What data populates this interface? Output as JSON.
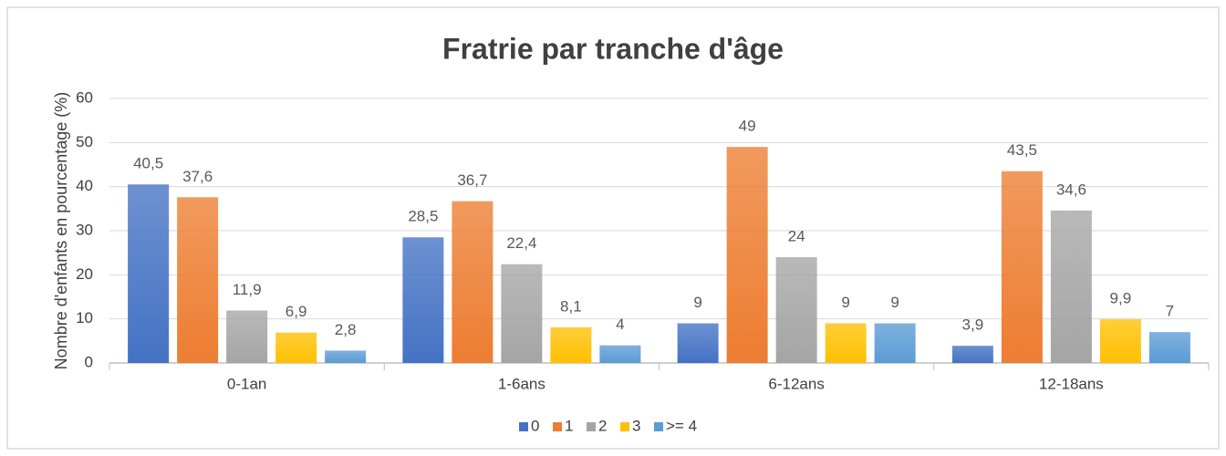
{
  "chart_data": {
    "type": "bar",
    "title": "Fratrie par tranche d'âge",
    "y_label": "Nombre d'enfants en pourcentage (%)",
    "categories": [
      "0-1an",
      "1-6ans",
      "6-12ans",
      "12-18ans"
    ],
    "series": [
      {
        "name": "0",
        "color": "#4472c4",
        "values": [
          40.5,
          28.5,
          9,
          3.9
        ],
        "value_labels": [
          "40,5",
          "28,5",
          "9",
          "3,9"
        ]
      },
      {
        "name": "1",
        "color": "#ed7d31",
        "values": [
          37.6,
          36.7,
          49,
          43.5
        ],
        "value_labels": [
          "37,6",
          "36,7",
          "49",
          "43,5"
        ]
      },
      {
        "name": "2",
        "color": "#a5a5a5",
        "values": [
          11.9,
          22.4,
          24,
          34.6
        ],
        "value_labels": [
          "11,9",
          "22,4",
          "24",
          "34,6"
        ]
      },
      {
        "name": "3",
        "color": "#ffc000",
        "values": [
          6.9,
          8.1,
          9,
          9.9
        ],
        "value_labels": [
          "6,9",
          "8,1",
          "9",
          "9,9"
        ]
      },
      {
        "name": ">= 4",
        "color": "#5b9bd5",
        "values": [
          2.8,
          4,
          9,
          7
        ],
        "value_labels": [
          "2,8",
          "4",
          "9",
          "7"
        ]
      }
    ],
    "ylim": [
      0,
      60
    ],
    "yticks": [
      0,
      10,
      20,
      30,
      40,
      50,
      60
    ],
    "grid": true,
    "legend": "bottom"
  }
}
